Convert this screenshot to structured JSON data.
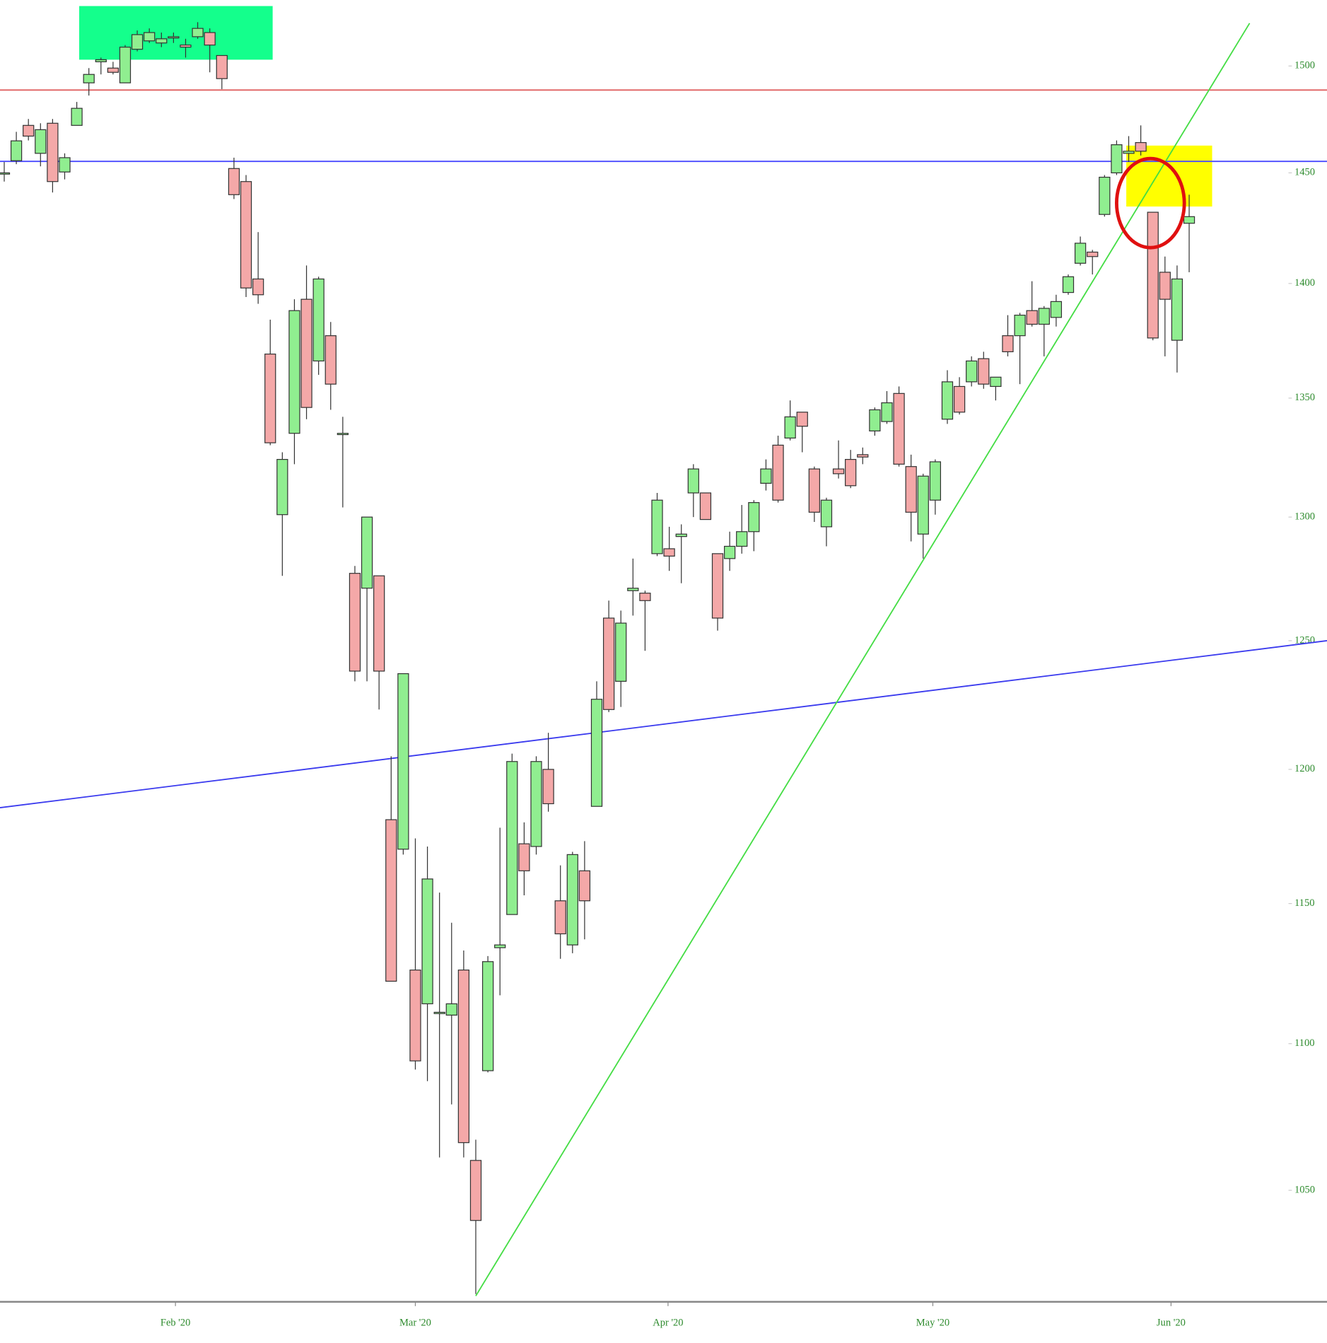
{
  "chart_data": {
    "type": "candlestick",
    "log_scale": true,
    "grid": false,
    "up_color": "#90ee90",
    "down_color": "#f4a8a8",
    "outline_color": "#333333",
    "ylim": [
      1013.5,
      1531.7
    ],
    "yticks": [
      1050,
      1100,
      1150,
      1200,
      1250,
      1300,
      1350,
      1400,
      1450,
      1500
    ],
    "xlim": [
      -0.35,
      109.4
    ],
    "xticks": [
      {
        "value": 14.16,
        "label": "Feb '20"
      },
      {
        "value": 34.0,
        "label": "Mar '20"
      },
      {
        "value": 54.9,
        "label": "Apr '20"
      },
      {
        "value": 76.8,
        "label": "May '20"
      },
      {
        "value": 96.5,
        "label": "Jun '20"
      }
    ],
    "open": [
      1450,
      1455.6,
      1472,
      1459,
      1473,
      1450.4,
      1472,
      1492,
      1502,
      1499,
      1492,
      1508,
      1512,
      1511,
      1514,
      1510,
      1514,
      1516,
      1505,
      1452,
      1446,
      1402,
      1369,
      1301,
      1335,
      1393,
      1366,
      1377,
      1335,
      1277,
      1271,
      1276,
      1181,
      1170,
      1126,
      1114,
      1111,
      1110,
      1126,
      1060,
      1090.6,
      1134,
      1146,
      1172,
      1171,
      1200,
      1151,
      1135,
      1162,
      1186,
      1259,
      1234,
      1270,
      1269,
      1285,
      1287,
      1292,
      1310,
      1310,
      1285,
      1283,
      1288,
      1294,
      1314,
      1330,
      1333,
      1344,
      1320,
      1296,
      1320,
      1324,
      1326,
      1336,
      1340,
      1352,
      1321,
      1293,
      1307,
      1341,
      1355,
      1357,
      1367,
      1355,
      1377,
      1377,
      1388,
      1382,
      1385,
      1396,
      1409,
      1414,
      1431,
      1450,
      1459,
      1464,
      1432,
      1405,
      1375,
      1427
    ],
    "high": [
      1455,
      1469,
      1475,
      1473,
      1475,
      1459,
      1483,
      1499,
      1504,
      1502,
      1510,
      1517,
      1518,
      1516,
      1516,
      1513,
      1521,
      1518,
      1505,
      1457,
      1449,
      1423,
      1384,
      1327,
      1393,
      1408,
      1403,
      1383,
      1342,
      1280,
      1300,
      1276,
      1205,
      1237,
      1174,
      1171,
      1154,
      1143,
      1133,
      1067,
      1131,
      1178,
      1206,
      1180,
      1205,
      1214,
      1164,
      1169,
      1173,
      1234,
      1266,
      1262,
      1283,
      1270,
      1310,
      1296,
      1297,
      1322,
      1310,
      1285,
      1294,
      1305,
      1307,
      1324,
      1334,
      1349,
      1344,
      1321,
      1308,
      1332,
      1328,
      1329,
      1346,
      1353,
      1355,
      1326,
      1318,
      1324,
      1362,
      1359,
      1368,
      1370,
      1359,
      1386,
      1387,
      1401,
      1390,
      1395,
      1404,
      1421,
      1415,
      1449,
      1465,
      1467,
      1472,
      1432,
      1412,
      1408,
      1440
    ],
    "low": [
      1446,
      1454,
      1465,
      1453,
      1441,
      1447,
      1472,
      1486,
      1496,
      1496,
      1492,
      1507,
      1511,
      1509,
      1511,
      1504,
      1513,
      1497,
      1489,
      1438,
      1394,
      1391,
      1330,
      1276,
      1322,
      1341,
      1360,
      1345,
      1304,
      1234,
      1234,
      1223,
      1122,
      1168,
      1091,
      1087,
      1061,
      1079,
      1061,
      1016,
      1090,
      1117,
      1146,
      1153,
      1168,
      1184,
      1130,
      1132,
      1137,
      1186,
      1222,
      1224,
      1260,
      1246,
      1284,
      1278,
      1273,
      1300,
      1299,
      1254,
      1278,
      1285,
      1286,
      1311,
      1306,
      1332,
      1327,
      1298,
      1288,
      1316,
      1312,
      1322,
      1334,
      1339,
      1321,
      1290,
      1283,
      1301,
      1339,
      1343,
      1355,
      1354,
      1349,
      1368,
      1356,
      1381,
      1368,
      1381,
      1395,
      1408,
      1404,
      1430,
      1449,
      1455,
      1458,
      1375,
      1368,
      1361,
      1405
    ],
    "close": [
      1450,
      1464.8,
      1467,
      1470,
      1446,
      1457,
      1480,
      1496,
      1503,
      1497,
      1509,
      1515,
      1516,
      1513,
      1514,
      1509,
      1518,
      1510,
      1494,
      1440,
      1398,
      1395,
      1331,
      1324,
      1388,
      1346,
      1402,
      1356,
      1335,
      1238,
      1300,
      1238,
      1122,
      1237,
      1094,
      1159,
      1111,
      1114,
      1066,
      1040,
      1129,
      1135,
      1203,
      1162,
      1203,
      1187,
      1139,
      1168,
      1151,
      1227,
      1223,
      1257,
      1271,
      1266,
      1307,
      1284,
      1293,
      1320,
      1299,
      1259,
      1288,
      1294,
      1306,
      1320,
      1307,
      1342,
      1338,
      1302,
      1307,
      1318,
      1313,
      1325,
      1345,
      1348,
      1322,
      1302,
      1317,
      1323,
      1357,
      1344,
      1366,
      1356,
      1359,
      1370,
      1386,
      1382,
      1389,
      1392,
      1403,
      1418,
      1412,
      1448,
      1463,
      1460,
      1460,
      1376,
      1393,
      1402,
      1430
    ],
    "boxes": [
      {
        "color": "#14ff8c",
        "x": [
          6.2,
          22.2
        ],
        "y": [
          1528.8,
          1503.0
        ]
      },
      {
        "color": "#ffff00",
        "x": [
          92.8,
          99.9
        ],
        "y": [
          1462.6,
          1434.6
        ]
      }
    ],
    "lines": [
      {
        "color": "#e06060",
        "x": [
          -0.35,
          109.4
        ],
        "y": [
          1488.6,
          1488.6
        ]
      },
      {
        "color": "#4a4aff",
        "x": [
          -0.35,
          109.4
        ],
        "y": [
          1455.3,
          1455.3
        ]
      },
      {
        "color": "#3a3aee",
        "x": [
          -0.35,
          109.4
        ],
        "y": [
          1185.5,
          1250
        ]
      },
      {
        "color": "#44dd44",
        "x": [
          39,
          103.0
        ],
        "y": [
          1015.4,
          1520.5
        ]
      }
    ],
    "ellipses": [
      {
        "color": "#e01010",
        "x": [
          92.0,
          97.6
        ],
        "y": [
          1456.6,
          1416.0
        ]
      }
    ]
  }
}
